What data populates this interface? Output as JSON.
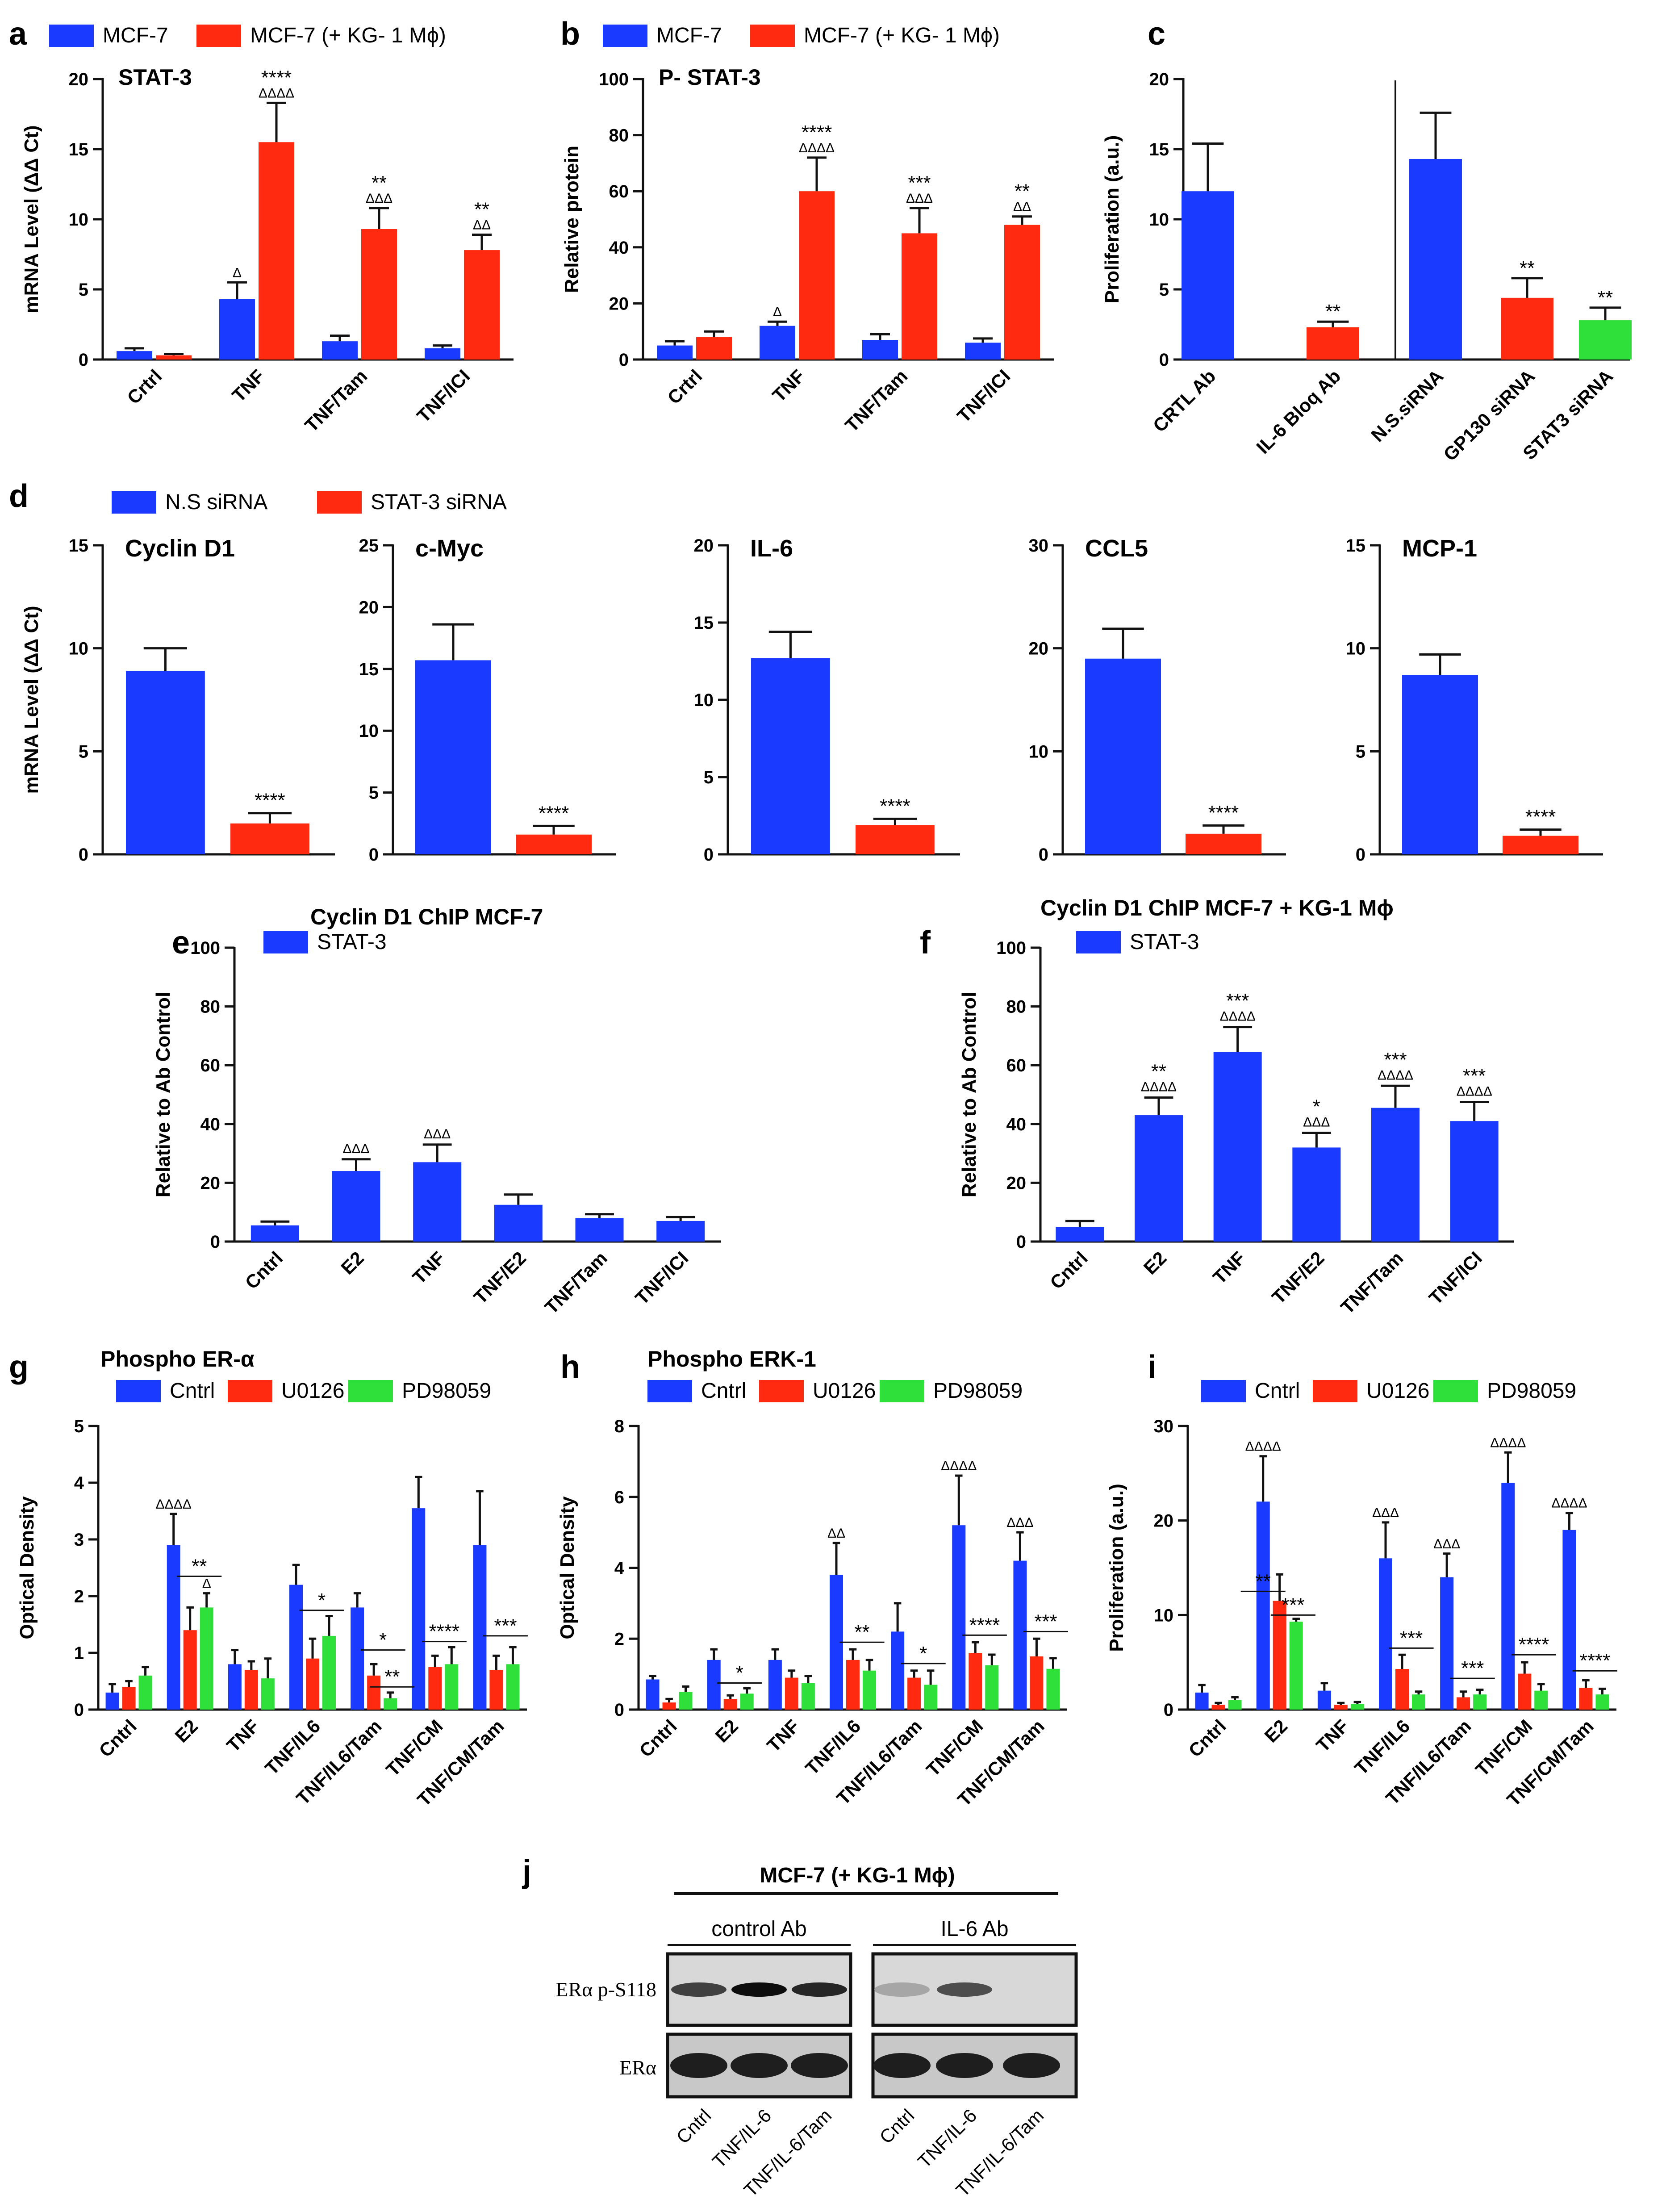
{
  "colors": {
    "blue": "#1a3bff",
    "red": "#ff2a10",
    "green": "#2fe03a",
    "black": "#111111"
  },
  "chart_data": [
    {
      "id": "a",
      "type": "bar",
      "letter": "a",
      "title": "STAT-3",
      "ylabel": "mRNA Level (ΔΔ Ct)",
      "ylim": [
        0,
        20
      ],
      "yticks": [
        0,
        5,
        10,
        15,
        20
      ],
      "categories": [
        "Crtrl",
        "TNF",
        "TNF/Tam",
        "TNF/ICI"
      ],
      "legend": [
        "MCF-7",
        "MCF-7 (+ KG- 1 Mϕ)"
      ],
      "series": [
        {
          "name": "MCF-7",
          "color": "blue",
          "values": [
            0.6,
            4.3,
            1.3,
            0.8
          ],
          "errors": [
            0.2,
            1.2,
            0.4,
            0.2
          ],
          "stars": [
            "",
            "",
            "",
            ""
          ],
          "deltas": [
            "",
            "Δ",
            "",
            ""
          ]
        },
        {
          "name": "MCF-7 (+ KG- 1 Mϕ)",
          "color": "red",
          "values": [
            0.3,
            15.5,
            9.3,
            7.8
          ],
          "errors": [
            0.1,
            2.8,
            1.5,
            1.1
          ],
          "stars": [
            "",
            "****",
            "**",
            "**"
          ],
          "deltas": [
            "",
            "ΔΔΔΔ",
            "ΔΔΔ",
            "ΔΔ"
          ]
        }
      ]
    },
    {
      "id": "b",
      "type": "bar",
      "letter": "b",
      "title": "P- STAT-3",
      "ylabel": "Relative protein",
      "ylim": [
        0,
        100
      ],
      "yticks": [
        0,
        20,
        40,
        60,
        80,
        100
      ],
      "categories": [
        "Crtrl",
        "TNF",
        "TNF/Tam",
        "TNF/ICI"
      ],
      "legend": [
        "MCF-7",
        "MCF-7 (+ KG- 1 Mϕ)"
      ],
      "series": [
        {
          "name": "MCF-7",
          "color": "blue",
          "values": [
            5,
            12,
            7,
            6
          ],
          "errors": [
            1.5,
            1.5,
            2,
            1.5
          ],
          "stars": [
            "",
            "",
            "",
            ""
          ],
          "deltas": [
            "",
            "Δ",
            "",
            ""
          ]
        },
        {
          "name": "MCF-7 (+ KG- 1 Mϕ)",
          "color": "red",
          "values": [
            8,
            60,
            45,
            48
          ],
          "errors": [
            2,
            12,
            9,
            3
          ],
          "stars": [
            "",
            "****",
            "***",
            "**"
          ],
          "deltas": [
            "",
            "ΔΔΔΔ",
            "ΔΔΔ",
            "ΔΔ"
          ]
        }
      ]
    },
    {
      "id": "c",
      "type": "bar",
      "letter": "c",
      "title": "",
      "ylabel": "Proliferation  (a.u.)",
      "ylim": [
        0,
        20
      ],
      "yticks": [
        0,
        5,
        10,
        15,
        20
      ],
      "categories": [
        "CRTL  Ab",
        "IL-6 Bloq Ab",
        "N.S.siRNA",
        "GP130 siRNA",
        "STAT3 siRNA"
      ],
      "single": true,
      "bars": [
        {
          "value": 12,
          "error": 3.4,
          "color": "blue",
          "star": ""
        },
        {
          "value": 2.3,
          "error": 0.4,
          "color": "red",
          "star": "**"
        },
        {
          "value": 14.3,
          "error": 3.3,
          "color": "blue",
          "star": ""
        },
        {
          "value": 4.4,
          "error": 1.4,
          "color": "red",
          "star": "**"
        },
        {
          "value": 2.8,
          "error": 0.9,
          "color": "green",
          "star": "**"
        }
      ]
    },
    {
      "id": "d1",
      "type": "bar",
      "letter": "d",
      "title": "Cyclin D1",
      "ylabel": "mRNA Level (ΔΔ Ct)",
      "ylim": [
        0,
        15
      ],
      "yticks": [
        0,
        5,
        10,
        15
      ],
      "values": [
        8.9,
        1.5
      ],
      "errors": [
        1.1,
        0.5
      ],
      "star": "****",
      "legend": [
        "N.S  siRNA",
        "STAT-3 siRNA"
      ]
    },
    {
      "id": "d2",
      "type": "bar",
      "title": "c-Myc",
      "ylim": [
        0,
        25
      ],
      "yticks": [
        0,
        5,
        10,
        15,
        20,
        25
      ],
      "values": [
        15.7,
        1.6
      ],
      "errors": [
        2.9,
        0.7
      ],
      "star": "****"
    },
    {
      "id": "d3",
      "type": "bar",
      "title": "IL-6",
      "ylim": [
        0,
        20
      ],
      "yticks": [
        0,
        5,
        10,
        15,
        20
      ],
      "values": [
        12.7,
        1.9
      ],
      "errors": [
        1.7,
        0.4
      ],
      "star": "****"
    },
    {
      "id": "d4",
      "type": "bar",
      "title": "CCL5",
      "ylim": [
        0,
        30
      ],
      "yticks": [
        0,
        10,
        20,
        30
      ],
      "values": [
        19,
        2
      ],
      "errors": [
        2.9,
        0.8
      ],
      "star": "****"
    },
    {
      "id": "d5",
      "type": "bar",
      "title": "MCP-1",
      "ylim": [
        0,
        15
      ],
      "yticks": [
        0,
        5,
        10,
        15
      ],
      "values": [
        8.7,
        0.9
      ],
      "errors": [
        1,
        0.3
      ],
      "star": "****"
    },
    {
      "id": "e",
      "type": "bar",
      "letter": "e",
      "title": "Cyclin D1  ChIP   MCF-7",
      "ylabel": "Relative to Ab Control",
      "ylim": [
        0,
        100
      ],
      "yticks": [
        0,
        20,
        40,
        60,
        80,
        100
      ],
      "categories": [
        "Cntrl",
        "E2",
        "TNF",
        "TNF/E2",
        "TNF/Tam",
        "TNF/ICI"
      ],
      "legend": [
        "STAT-3"
      ],
      "single": true,
      "bars": [
        {
          "value": 5.5,
          "error": 1.3,
          "color": "blue",
          "star": "",
          "delta": ""
        },
        {
          "value": 24,
          "error": 4,
          "color": "blue",
          "star": "",
          "delta": "ΔΔΔ"
        },
        {
          "value": 27,
          "error": 6,
          "color": "blue",
          "star": "",
          "delta": "ΔΔΔ"
        },
        {
          "value": 12.5,
          "error": 3.5,
          "color": "blue",
          "star": "",
          "delta": ""
        },
        {
          "value": 8,
          "error": 1.3,
          "color": "blue",
          "star": "",
          "delta": ""
        },
        {
          "value": 7,
          "error": 1.3,
          "color": "blue",
          "star": "",
          "delta": ""
        }
      ]
    },
    {
      "id": "f",
      "type": "bar",
      "letter": "f",
      "title": "Cyclin D1 ChIP    MCF-7 + KG-1 Mϕ",
      "ylabel": "Relative to Ab Control",
      "ylim": [
        0,
        100
      ],
      "yticks": [
        0,
        20,
        40,
        60,
        80,
        100
      ],
      "categories": [
        "Cntrl",
        "E2",
        "TNF",
        "TNF/E2",
        "TNF/Tam",
        "TNF/ICI"
      ],
      "legend": [
        "STAT-3"
      ],
      "single": true,
      "bars": [
        {
          "value": 5,
          "error": 2,
          "color": "blue",
          "star": "",
          "delta": ""
        },
        {
          "value": 43,
          "error": 6,
          "color": "blue",
          "star": "**",
          "delta": "ΔΔΔΔ"
        },
        {
          "value": 64.5,
          "error": 8.5,
          "color": "blue",
          "star": "***",
          "delta": "ΔΔΔΔ"
        },
        {
          "value": 32,
          "error": 5,
          "color": "blue",
          "star": "*",
          "delta": "ΔΔΔ"
        },
        {
          "value": 45.5,
          "error": 7.5,
          "color": "blue",
          "star": "***",
          "delta": "ΔΔΔΔ"
        },
        {
          "value": 41,
          "error": 6.5,
          "color": "blue",
          "star": "***",
          "delta": "ΔΔΔΔ"
        }
      ]
    },
    {
      "id": "g",
      "type": "bar",
      "letter": "g",
      "title": "Phospho ER-α",
      "ylabel": "Optical Density",
      "ylim": [
        0,
        5
      ],
      "yticks": [
        0,
        1,
        2,
        3,
        4,
        5
      ],
      "categories": [
        "Cntrl",
        "E2",
        "TNF",
        "TNF/IL6",
        "TNF/IL6/Tam",
        "TNF/CM",
        "TNF/CM/Tam"
      ],
      "legend": [
        "Cntrl",
        "U0126",
        "PD98059"
      ],
      "series": [
        {
          "name": "Cntrl",
          "color": "blue",
          "values": [
            0.3,
            2.9,
            0.8,
            2.2,
            1.8,
            3.55,
            2.9
          ],
          "errors": [
            0.15,
            0.55,
            0.25,
            0.35,
            0.25,
            0.55,
            0.95
          ],
          "deltas": [
            "",
            "ΔΔΔΔ",
            "",
            "",
            "",
            "",
            ""
          ]
        },
        {
          "name": "U0126",
          "color": "red",
          "values": [
            0.4,
            1.4,
            0.7,
            0.9,
            0.6,
            0.75,
            0.7
          ],
          "errors": [
            0.1,
            0.4,
            0.15,
            0.35,
            0.2,
            0.2,
            0.25
          ],
          "deltas": [
            "",
            "",
            "",
            "",
            "",
            "",
            ""
          ]
        },
        {
          "name": "PD98059",
          "color": "green",
          "values": [
            0.6,
            1.8,
            0.55,
            1.3,
            0.2,
            0.8,
            0.8
          ],
          "errors": [
            0.15,
            0.25,
            0.35,
            0.35,
            0.1,
            0.3,
            0.3
          ],
          "deltas": [
            "",
            "Δ",
            "",
            "",
            "",
            "",
            ""
          ]
        }
      ],
      "annotations": [
        {
          "cat": 1,
          "text": "**",
          "value": 2.35
        },
        {
          "cat": 3,
          "text": "*",
          "value": 1.75
        },
        {
          "cat": 4,
          "text": "*",
          "value": 1.05
        },
        {
          "cat": 4,
          "text": "**",
          "value": 0.4,
          "offset": 0.3
        },
        {
          "cat": 5,
          "text": "****",
          "value": 1.2
        },
        {
          "cat": 6,
          "text": "***",
          "value": 1.3
        }
      ]
    },
    {
      "id": "h",
      "type": "bar",
      "letter": "h",
      "title": "Phospho ERK-1",
      "ylabel": "Optical Density",
      "ylim": [
        0,
        8
      ],
      "yticks": [
        0,
        2,
        4,
        6,
        8
      ],
      "categories": [
        "Cntrl",
        "E2",
        "TNF",
        "TNF/IL6",
        "TNF/IL6/Tam",
        "TNF/CM",
        "TNF/CM/Tam"
      ],
      "legend": [
        "Cntrl",
        "U0126",
        "PD98059"
      ],
      "series": [
        {
          "name": "Cntrl",
          "color": "blue",
          "values": [
            0.85,
            1.4,
            1.4,
            3.8,
            2.2,
            5.2,
            4.2
          ],
          "errors": [
            0.1,
            0.3,
            0.3,
            0.9,
            0.8,
            1.4,
            0.8
          ],
          "deltas": [
            "",
            "",
            "",
            "ΔΔ",
            "",
            "ΔΔΔΔ",
            "ΔΔΔ"
          ]
        },
        {
          "name": "U0126",
          "color": "red",
          "values": [
            0.2,
            0.3,
            0.9,
            1.4,
            0.9,
            1.6,
            1.5
          ],
          "errors": [
            0.1,
            0.1,
            0.2,
            0.3,
            0.2,
            0.3,
            0.5
          ],
          "deltas": [
            "",
            "",
            "",
            "",
            "",
            "",
            ""
          ]
        },
        {
          "name": "PD98059",
          "color": "green",
          "values": [
            0.5,
            0.45,
            0.75,
            1.1,
            0.7,
            1.25,
            1.15
          ],
          "errors": [
            0.15,
            0.15,
            0.2,
            0.3,
            0.4,
            0.3,
            0.3
          ],
          "deltas": [
            "",
            "",
            "",
            "",
            "",
            "",
            ""
          ]
        }
      ],
      "annotations": [
        {
          "cat": 1,
          "text": "*",
          "value": 0.75
        },
        {
          "cat": 3,
          "text": "**",
          "value": 1.9
        },
        {
          "cat": 4,
          "text": "*",
          "value": 1.3
        },
        {
          "cat": 5,
          "text": "****",
          "value": 2.1
        },
        {
          "cat": 6,
          "text": "***",
          "value": 2.2
        }
      ]
    },
    {
      "id": "i",
      "type": "bar",
      "letter": "i",
      "title": "",
      "ylabel": "Proliferation  (a.u.)",
      "ylim": [
        0,
        30
      ],
      "yticks": [
        0,
        10,
        20,
        30
      ],
      "categories": [
        "Cntrl",
        "E2",
        "TNF",
        "TNF/IL6",
        "TNF/IL6/Tam",
        "TNF/CM",
        "TNF/CM/Tam"
      ],
      "legend": [
        "Cntrl",
        "U0126",
        "PD98059"
      ],
      "series": [
        {
          "name": "Cntrl",
          "color": "blue",
          "values": [
            1.8,
            22,
            2,
            16,
            14,
            24,
            19
          ],
          "errors": [
            0.8,
            4.8,
            0.8,
            3.8,
            2.5,
            3.2,
            1.8
          ],
          "deltas": [
            "",
            "ΔΔΔΔ",
            "",
            "ΔΔΔ",
            "ΔΔΔ",
            "ΔΔΔΔ",
            "ΔΔΔΔ"
          ]
        },
        {
          "name": "U0126",
          "color": "red",
          "values": [
            0.5,
            11.5,
            0.5,
            4.3,
            1.3,
            3.8,
            2.3
          ],
          "errors": [
            0.2,
            2.8,
            0.2,
            1.5,
            0.6,
            1.2,
            0.8
          ],
          "deltas": [
            "",
            "",
            "",
            "",
            "",
            "",
            ""
          ]
        },
        {
          "name": "PD98059",
          "color": "green",
          "values": [
            1,
            9.3,
            0.6,
            1.6,
            1.6,
            2,
            1.6
          ],
          "errors": [
            0.3,
            0.3,
            0.2,
            0.3,
            0.5,
            0.7,
            0.6
          ],
          "deltas": [
            "",
            "",
            "",
            "",
            "",
            "",
            ""
          ]
        }
      ],
      "annotations": [
        {
          "cat": 1,
          "text": "**",
          "value": 12.5,
          "offset": -0.27
        },
        {
          "cat": 1,
          "text": "***",
          "value": 10.0,
          "offset": 0.22
        },
        {
          "cat": 3,
          "text": "***",
          "value": 6.5
        },
        {
          "cat": 4,
          "text": "***",
          "value": 3.3
        },
        {
          "cat": 5,
          "text": "****",
          "value": 5.8
        },
        {
          "cat": 6,
          "text": "****",
          "value": 4.1
        }
      ]
    }
  ],
  "blot": {
    "letter": "j",
    "header": "MCF-7 (+ KG-1 Mϕ)",
    "groups": [
      "control Ab",
      "IL-6 Ab"
    ],
    "rows": [
      "ERα p-S118",
      "ERα"
    ],
    "lanes": [
      "Cntrl",
      "TNF/IL-6",
      "TNF/IL-6/Tam",
      "Cntrl",
      "TNF/IL-6",
      "TNF/IL-6/Tam"
    ]
  }
}
